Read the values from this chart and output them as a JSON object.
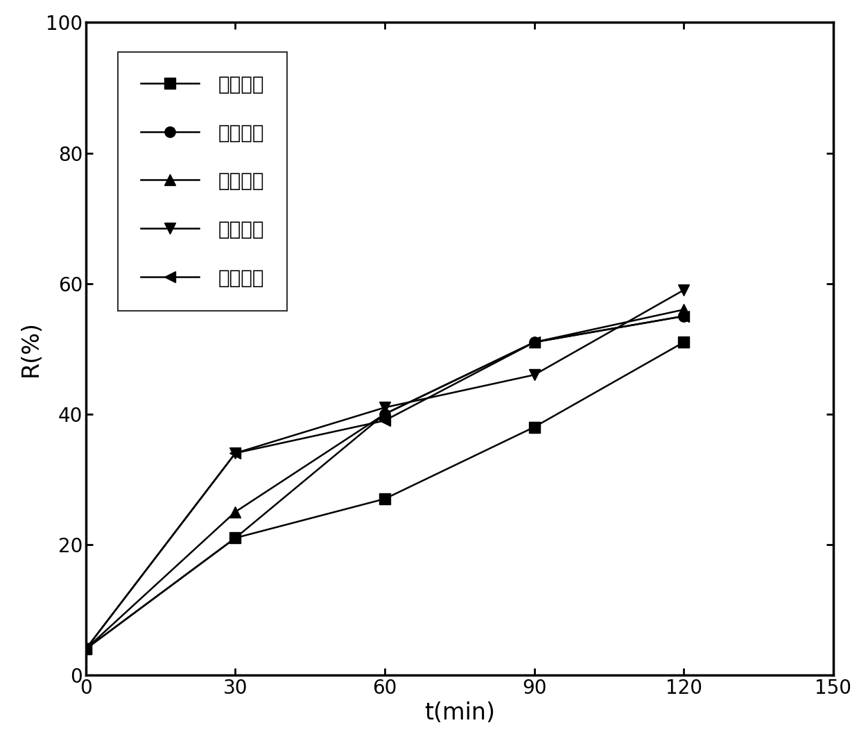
{
  "series": [
    {
      "label": "实施例一",
      "x": [
        0,
        30,
        60,
        90,
        120
      ],
      "y": [
        4,
        21,
        27,
        38,
        51
      ],
      "marker": "s",
      "markersize": 11
    },
    {
      "label": "实施例二",
      "x": [
        0,
        30,
        60,
        90,
        120
      ],
      "y": [
        4,
        21,
        40,
        51,
        55
      ],
      "marker": "o",
      "markersize": 11
    },
    {
      "label": "实施例三",
      "x": [
        0,
        30,
        60,
        90,
        120
      ],
      "y": [
        4,
        25,
        40,
        51,
        56
      ],
      "marker": "^",
      "markersize": 11
    },
    {
      "label": "实施例四",
      "x": [
        0,
        30,
        60,
        90,
        120
      ],
      "y": [
        4,
        34,
        41,
        46,
        59
      ],
      "marker": "v",
      "markersize": 11
    },
    {
      "label": "实施例五",
      "x": [
        0,
        30,
        60,
        90,
        120
      ],
      "y": [
        4,
        34,
        39,
        51,
        55
      ],
      "marker": "<",
      "markersize": 11
    }
  ],
  "xlabel": "t(min)",
  "ylabel": "R(%)",
  "xlim": [
    0,
    150
  ],
  "ylim": [
    0,
    100
  ],
  "xticks": [
    0,
    30,
    60,
    90,
    120,
    150
  ],
  "yticks": [
    0,
    20,
    40,
    60,
    80,
    100
  ],
  "line_color": "#000000",
  "line_width": 1.8,
  "legend_fontsize": 20,
  "axis_label_fontsize": 24,
  "tick_fontsize": 20,
  "figure_width": 12.39,
  "figure_height": 10.81,
  "dpi": 100,
  "legend_labelspacing": 1.5,
  "legend_handlelength": 3.0,
  "legend_borderpad": 1.2
}
